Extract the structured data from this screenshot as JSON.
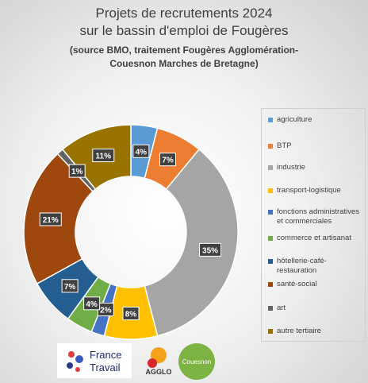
{
  "chart_data": {
    "type": "donut",
    "title": [
      "Projets de recrutements 2024",
      "sur le bassin d'emploi de Fougères"
    ],
    "subtitle": [
      "(source BMO, traitement Fougères Agglomération-",
      "Couesnon Marches de Bretagne)"
    ],
    "categories": [
      "agriculture",
      "BTP",
      "industrie",
      "transport-logistique",
      "fonctions administratives et commerciales",
      "commerce et artisanat",
      "hôtellerie-café-restauration",
      "santé-social",
      "art",
      "autre tertiaire"
    ],
    "values": [
      4,
      7,
      35,
      8,
      2,
      4,
      7,
      21,
      1,
      11
    ],
    "value_labels": [
      "4%",
      "7%",
      "35%",
      "8%",
      "2%",
      "4%",
      "7%",
      "21%",
      "1%",
      "11%"
    ],
    "colors": [
      "#5b9bd5",
      "#ed7d31",
      "#a5a5a5",
      "#ffc000",
      "#4472c4",
      "#70ad47",
      "#255e91",
      "#9e480e",
      "#636363",
      "#997300"
    ],
    "legend": "right"
  },
  "logos": {
    "france_travail": [
      "France",
      "Travail"
    ],
    "agglo": "AGGLO",
    "couesnon": "Couesnon"
  }
}
